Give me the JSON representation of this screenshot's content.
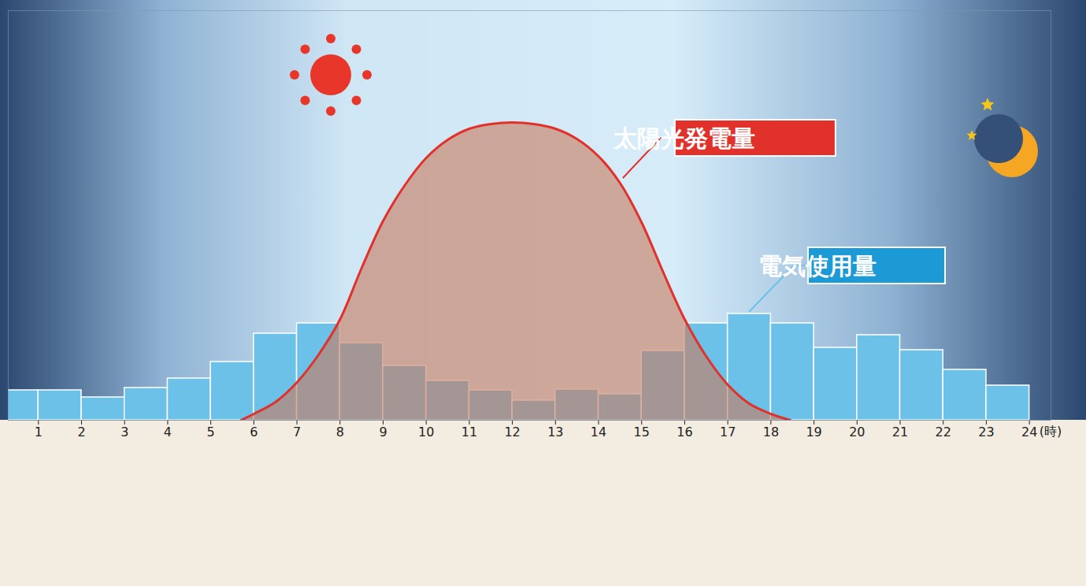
{
  "chart_data": {
    "type": "bar",
    "xlabel": "(時)",
    "xlim": [
      0.3,
      24.5
    ],
    "xticks": [
      1,
      2,
      3,
      4,
      5,
      6,
      7,
      8,
      9,
      10,
      11,
      12,
      13,
      14,
      15,
      16,
      17,
      18,
      19,
      20,
      21,
      22,
      23,
      24
    ],
    "ylim": [
      0,
      520
    ],
    "tick_labels": "x",
    "grid": false,
    "series": [
      {
        "name": "電気使用量",
        "type": "bar",
        "color": "#6cc1e8",
        "bins": [
          0,
          1,
          2,
          3,
          4,
          5,
          6,
          7,
          8,
          9,
          10,
          11,
          12,
          13,
          14,
          15,
          16,
          17,
          18,
          19,
          20,
          21,
          22,
          23,
          24
        ],
        "values": [
          38,
          38,
          29,
          41,
          53,
          74,
          110,
          123,
          98,
          69,
          50,
          38,
          25,
          39,
          33,
          88,
          123,
          135,
          123,
          92,
          108,
          89,
          64,
          44
        ]
      },
      {
        "name": "太陽光発電量",
        "type": "area",
        "color": "#e2302a",
        "x": [
          5.7,
          6,
          6.5,
          7,
          7.5,
          8,
          8.5,
          9,
          9.5,
          10,
          10.5,
          11,
          11.5,
          12,
          12.5,
          13,
          13.5,
          14,
          14.5,
          15,
          15.5,
          16,
          16.5,
          17,
          17.5,
          18,
          18.45
        ],
        "values": [
          0,
          8,
          23,
          48,
          83,
          128,
          193,
          253,
          298,
          333,
          356,
          370,
          376,
          378,
          376,
          370,
          357,
          335,
          301,
          251,
          188,
          128,
          81,
          45,
          21,
          8,
          0
        ]
      }
    ]
  }
}
